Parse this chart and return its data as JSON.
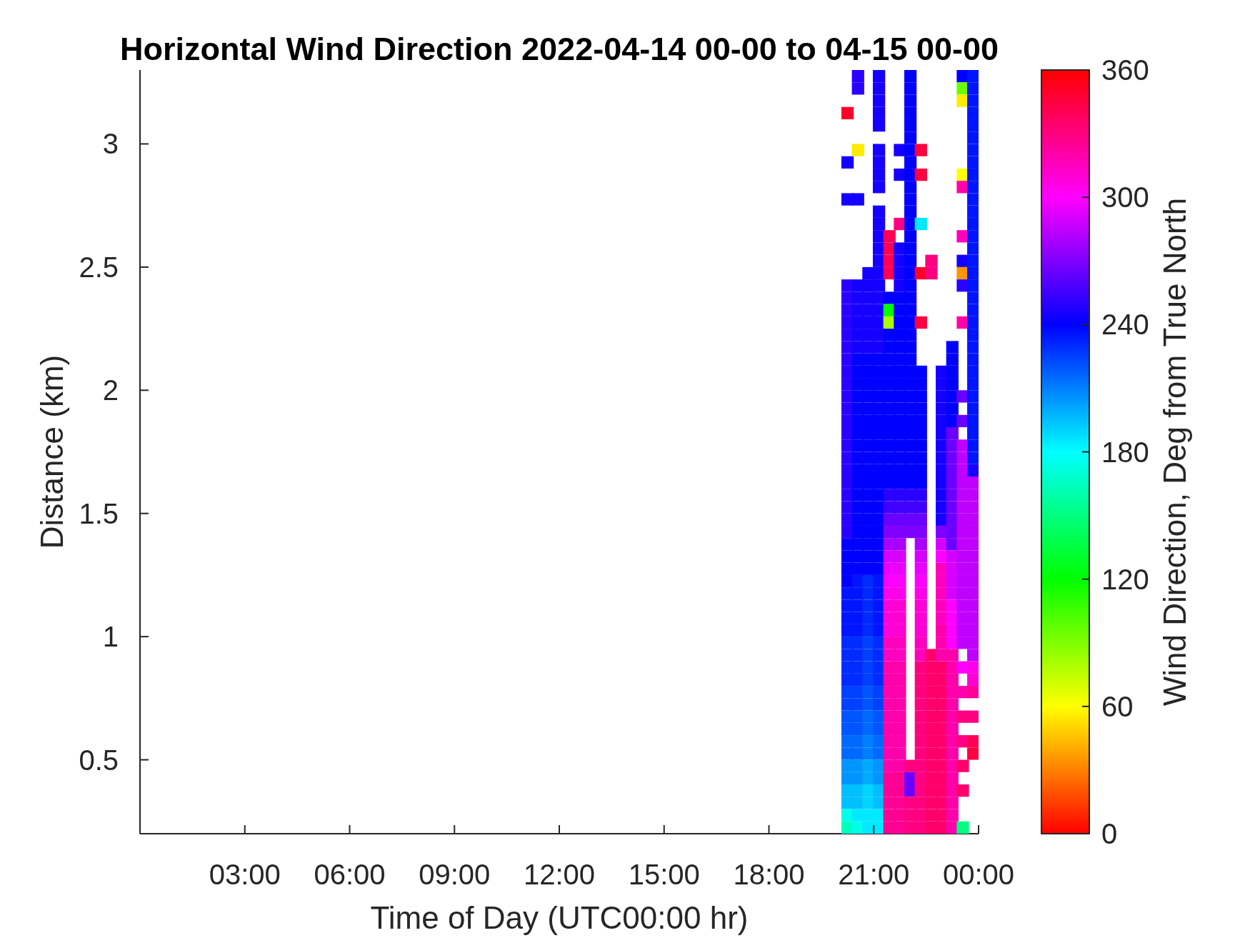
{
  "chart_data": {
    "type": "scatter",
    "title": "Horizontal Wind Direction 2022-04-14 00-00 to 04-15 00-00",
    "xlabel": "Time of Day (UTC00:00 hr)",
    "ylabel": "Distance (km)",
    "clabel": "Wind Direction, Deg from True North",
    "marker": "square",
    "xlim": [
      0,
      24
    ],
    "xticks": [
      {
        "value": 3,
        "label": "03:00"
      },
      {
        "value": 6,
        "label": "06:00"
      },
      {
        "value": 9,
        "label": "09:00"
      },
      {
        "value": 12,
        "label": "12:00"
      },
      {
        "value": 15,
        "label": "15:00"
      },
      {
        "value": 18,
        "label": "18:00"
      },
      {
        "value": 21,
        "label": "21:00"
      },
      {
        "value": 24,
        "label": "00:00"
      }
    ],
    "ylim": [
      0.2,
      3.3
    ],
    "yticks": [
      0.5,
      1,
      1.5,
      2,
      2.5,
      3
    ],
    "clim": [
      0,
      360
    ],
    "cticks": [
      0,
      60,
      120,
      180,
      240,
      300,
      360
    ],
    "x": [
      20.25,
      20.25,
      20.25,
      20.25,
      20.25,
      20.25,
      20.25,
      20.25,
      20.25,
      20.25,
      20.25,
      20.25,
      20.25,
      20.25,
      20.25,
      20.25,
      20.25,
      20.25,
      20.25,
      20.25,
      20.25,
      20.25,
      20.25,
      20.25,
      20.25,
      20.25,
      20.25,
      20.25,
      20.25,
      20.25,
      20.25,
      20.25,
      20.25,
      20.25,
      20.25,
      20.25,
      20.25,
      20.25,
      20.25,
      20.25,
      20.25,
      20.25,
      20.25,
      20.25,
      20.25,
      20.25,
      20.25,
      20.25,
      20.55,
      20.55,
      20.55,
      20.55,
      20.55,
      20.55,
      20.55,
      20.55,
      20.55,
      20.55,
      20.55,
      20.55,
      20.55,
      20.55,
      20.55,
      20.55,
      20.55,
      20.55,
      20.55,
      20.55,
      20.55,
      20.55,
      20.55,
      20.55,
      20.55,
      20.55,
      20.55,
      20.55,
      20.55,
      20.55,
      20.55,
      20.55,
      20.55,
      20.55,
      20.55,
      20.55,
      20.55,
      20.55,
      20.55,
      20.55,
      20.55,
      20.55,
      20.55,
      20.55,
      20.55,
      20.55,
      20.55,
      20.55,
      20.55,
      20.85,
      20.85,
      20.85,
      20.85,
      20.85,
      20.85,
      20.85,
      20.85,
      20.85,
      20.85,
      20.85,
      20.85,
      20.85,
      20.85,
      20.85,
      20.85,
      20.85,
      20.85,
      20.85,
      20.85,
      20.85,
      20.85,
      20.85,
      20.85,
      20.85,
      20.85,
      20.85,
      20.85,
      20.85,
      20.85,
      20.85,
      20.85,
      20.85,
      20.85,
      20.85,
      20.85,
      20.85,
      20.85,
      20.85,
      20.85,
      20.85,
      20.85,
      20.85,
      20.85,
      20.85,
      20.85,
      21.15,
      21.15,
      21.15,
      21.15,
      21.15,
      21.15,
      21.15,
      21.15,
      21.15,
      21.15,
      21.15,
      21.15,
      21.15,
      21.15,
      21.15,
      21.15,
      21.15,
      21.15,
      21.15,
      21.15,
      21.15,
      21.15,
      21.15,
      21.15,
      21.15,
      21.15,
      21.15,
      21.15,
      21.15,
      21.15,
      21.15,
      21.15,
      21.15,
      21.15,
      21.15,
      21.15,
      21.15,
      21.15,
      21.15,
      21.15,
      21.15,
      21.15,
      21.15,
      21.15,
      21.15,
      21.15,
      21.15,
      21.15,
      21.15,
      21.15,
      21.15,
      21.15,
      21.15,
      21.15,
      21.15,
      21.15,
      21.15,
      21.15,
      21.15,
      21.15,
      21.45,
      21.45,
      21.45,
      21.45,
      21.45,
      21.45,
      21.45,
      21.45,
      21.45,
      21.45,
      21.45,
      21.45,
      21.45,
      21.45,
      21.45,
      21.45,
      21.45,
      21.45,
      21.45,
      21.45,
      21.45,
      21.45,
      21.45,
      21.45,
      21.45,
      21.45,
      21.45,
      21.45,
      21.45,
      21.45,
      21.45,
      21.45,
      21.45,
      21.45,
      21.45,
      21.45,
      21.45,
      21.45,
      21.45,
      21.45,
      21.45,
      21.45,
      21.45,
      21.45,
      21.45,
      21.45,
      21.45,
      21.45,
      21.75,
      21.75,
      21.75,
      21.75,
      21.75,
      21.75,
      21.75,
      21.75,
      21.75,
      21.75,
      21.75,
      21.75,
      21.75,
      21.75,
      21.75,
      21.75,
      21.75,
      21.75,
      21.75,
      21.75,
      21.75,
      21.75,
      21.75,
      21.75,
      21.75,
      21.75,
      21.75,
      21.75,
      21.75,
      21.75,
      21.75,
      21.75,
      21.75,
      21.75,
      21.75,
      21.75,
      21.75,
      21.75,
      21.75,
      21.75,
      21.75,
      21.75,
      21.75,
      21.75,
      21.75,
      21.75,
      21.75,
      21.75,
      21.75,
      21.75,
      21.75,
      22.05,
      22.05,
      22.05,
      22.05,
      22.05,
      22.05,
      22.05,
      22.05,
      22.05,
      22.05,
      22.05,
      22.05,
      22.05,
      22.05,
      22.05,
      22.05,
      22.05,
      22.05,
      22.05,
      22.05,
      22.05,
      22.05,
      22.05,
      22.05,
      22.05,
      22.05,
      22.05,
      22.05,
      22.05,
      22.05,
      22.05,
      22.05,
      22.05,
      22.05,
      22.05,
      22.05,
      22.05,
      22.05,
      22.05,
      22.05,
      22.05,
      22.05,
      22.05,
      22.05,
      22.35,
      22.35,
      22.35,
      22.35,
      22.35,
      22.35,
      22.35,
      22.35,
      22.35,
      22.35,
      22.35,
      22.35,
      22.35,
      22.35,
      22.35,
      22.35,
      22.35,
      22.35,
      22.35,
      22.35,
      22.35,
      22.35,
      22.35,
      22.35,
      22.35,
      22.35,
      22.35,
      22.35,
      22.35,
      22.35,
      22.35,
      22.35,
      22.35,
      22.35,
      22.35,
      22.35,
      22.35,
      22.35,
      22.35,
      22.35,
      22.35,
      22.35,
      22.35,
      22.65,
      22.65,
      22.65,
      22.65,
      22.65,
      22.65,
      22.65,
      22.65,
      22.65,
      22.65,
      22.65,
      22.65,
      22.65,
      22.65,
      22.65,
      22.65,
      22.65,
      22.95,
      22.95,
      22.95,
      22.95,
      22.95,
      22.95,
      22.95,
      22.95,
      22.95,
      22.95,
      22.95,
      22.95,
      22.95,
      22.95,
      22.95,
      22.95,
      22.95,
      22.95,
      22.95,
      22.95,
      22.95,
      22.95,
      22.95,
      22.95,
      22.95,
      22.95,
      22.95,
      22.95,
      22.95,
      22.95,
      22.95,
      22.95,
      22.95,
      22.95,
      22.95,
      22.95,
      22.95,
      22.95,
      23.25,
      23.25,
      23.25,
      23.25,
      23.25,
      23.25,
      23.25,
      23.25,
      23.25,
      23.25,
      23.25,
      23.25,
      23.25,
      23.25,
      23.25,
      23.25,
      23.25,
      23.25,
      23.25,
      23.25,
      23.25,
      23.25,
      23.25,
      23.25,
      23.25,
      23.25,
      23.25,
      23.25,
      23.25,
      23.25,
      23.25,
      23.25,
      23.25,
      23.25,
      23.25,
      23.25,
      23.25,
      23.25,
      23.25,
      23.25,
      23.55,
      23.55,
      23.55,
      23.55,
      23.55,
      23.55,
      23.55,
      23.55,
      23.55,
      23.55,
      23.55,
      23.55,
      23.55,
      23.55,
      23.55,
      23.55,
      23.55,
      23.55,
      23.55,
      23.55,
      23.55,
      23.55,
      23.55,
      23.55,
      23.55,
      23.55,
      23.55,
      23.55,
      23.55,
      23.55,
      23.55,
      23.55,
      23.55,
      23.55,
      23.55,
      23.55,
      23.85,
      23.85,
      23.85,
      23.85,
      23.85,
      23.85,
      23.85,
      23.85,
      23.85,
      23.85,
      23.85,
      23.85,
      23.85,
      23.85,
      23.85,
      23.85,
      23.85,
      23.85,
      23.85,
      23.85,
      23.85,
      23.85,
      23.85,
      23.85,
      23.85,
      23.85,
      23.85,
      23.85,
      23.85,
      23.85,
      23.85,
      23.85,
      23.85,
      23.85,
      23.85,
      23.85,
      23.85,
      23.85,
      23.85,
      23.85,
      23.85,
      23.85,
      23.85,
      23.85,
      23.85,
      23.85,
      23.85,
      23.85,
      23.85,
      23.85,
      23.85,
      23.85,
      23.85,
      23.85
    ],
    "values": [
      3.125,
      2.925,
      2.775,
      2.425,
      2.375,
      2.325,
      2.275,
      2.225,
      2.175,
      2.125,
      2.075,
      2.025,
      1.975,
      1.925,
      1.875,
      1.825,
      1.775,
      1.725,
      1.675,
      1.625,
      1.575,
      1.525,
      1.475,
      1.425,
      1.375,
      1.325,
      1.275,
      1.225,
      1.175,
      1.125,
      1.075,
      1.025,
      0.975,
      0.925,
      0.875,
      0.825,
      0.775,
      0.725,
      0.675,
      0.625,
      0.575,
      0.525,
      0.475,
      0.425,
      0.375,
      0.325,
      0.275,
      0.225,
      3.275,
      3.225,
      2.975,
      2.775,
      2.425,
      2.375,
      2.325,
      2.275,
      2.225,
      2.175,
      2.125,
      2.075,
      2.025,
      1.975,
      1.925,
      1.875,
      1.825,
      1.775,
      1.725,
      1.675,
      1.625,
      1.575,
      1.525,
      1.475,
      1.425,
      1.375,
      1.325,
      1.275,
      1.225,
      1.175,
      1.125,
      1.075,
      1.025,
      0.975,
      0.925,
      0.875,
      0.825,
      0.775,
      0.725,
      0.675,
      0.625,
      0.575,
      0.525,
      0.475,
      0.425,
      0.375,
      0.325,
      0.275,
      0.225,
      2.475,
      2.425,
      2.375,
      2.325,
      2.275,
      2.225,
      2.175,
      2.125,
      2.075,
      2.025,
      1.975,
      1.925,
      1.875,
      1.825,
      1.775,
      1.725,
      1.675,
      1.625,
      1.575,
      1.525,
      1.475,
      1.425,
      1.375,
      1.325,
      1.275,
      1.225,
      1.175,
      1.125,
      1.075,
      1.025,
      0.975,
      0.925,
      0.875,
      0.825,
      0.775,
      0.725,
      0.675,
      0.625,
      0.575,
      0.525,
      0.475,
      0.425,
      0.375,
      0.325,
      0.275,
      0.225,
      3.275,
      3.225,
      3.175,
      3.125,
      3.075,
      2.975,
      2.925,
      2.875,
      2.825,
      2.725,
      2.675,
      2.625,
      2.575,
      2.525,
      2.475,
      2.425,
      2.375,
      2.325,
      2.275,
      2.225,
      2.175,
      2.125,
      2.075,
      2.025,
      1.975,
      1.925,
      1.875,
      1.825,
      1.775,
      1.725,
      1.675,
      1.625,
      1.575,
      1.525,
      1.475,
      1.425,
      1.375,
      1.325,
      1.275,
      1.225,
      1.175,
      1.125,
      1.075,
      1.025,
      0.975,
      0.925,
      0.875,
      0.825,
      0.775,
      0.725,
      0.675,
      0.625,
      0.575,
      0.525,
      0.475,
      0.425,
      0.375,
      0.325,
      0.275,
      0.225,
      2.625,
      2.575,
      2.525,
      2.475,
      2.375,
      2.325,
      2.275,
      2.225,
      2.175,
      2.125,
      2.075,
      2.025,
      1.975,
      1.925,
      1.875,
      1.825,
      1.775,
      1.725,
      1.675,
      1.625,
      1.575,
      1.525,
      1.475,
      1.425,
      1.375,
      1.325,
      1.275,
      1.225,
      1.175,
      1.125,
      1.075,
      1.025,
      0.975,
      0.925,
      0.875,
      0.825,
      0.775,
      0.725,
      0.675,
      0.625,
      0.575,
      0.525,
      0.475,
      0.425,
      0.375,
      0.325,
      0.275,
      0.225,
      2.975,
      2.875,
      2.675,
      2.575,
      2.525,
      2.475,
      2.425,
      2.375,
      2.325,
      2.275,
      2.225,
      2.175,
      2.125,
      2.075,
      2.025,
      1.975,
      1.925,
      1.875,
      1.825,
      1.775,
      1.725,
      1.675,
      1.625,
      1.575,
      1.525,
      1.475,
      1.425,
      1.375,
      1.325,
      1.275,
      1.225,
      1.175,
      1.125,
      1.075,
      1.025,
      0.975,
      0.925,
      0.875,
      0.825,
      0.775,
      0.725,
      0.675,
      0.625,
      0.575,
      0.525,
      0.475,
      0.425,
      0.375,
      0.325,
      0.275,
      0.225,
      3.275,
      3.225,
      3.175,
      3.125,
      3.075,
      3.025,
      2.975,
      2.925,
      2.875,
      2.825,
      2.775,
      2.725,
      2.675,
      2.625,
      2.575,
      2.525,
      2.475,
      2.425,
      2.375,
      2.325,
      2.275,
      2.225,
      2.175,
      2.125,
      2.075,
      2.025,
      1.975,
      1.925,
      1.875,
      1.825,
      1.775,
      1.725,
      1.675,
      1.625,
      1.575,
      1.525,
      1.475,
      1.425,
      0.475,
      0.425,
      0.375,
      0.325,
      0.275,
      0.225,
      2.975,
      2.875,
      2.675,
      2.475,
      2.275,
      2.075,
      2.025,
      1.975,
      1.925,
      1.875,
      1.825,
      1.775,
      1.725,
      1.675,
      1.625,
      1.575,
      1.525,
      1.475,
      1.425,
      1.375,
      1.325,
      1.275,
      1.225,
      1.175,
      1.125,
      1.075,
      1.025,
      0.975,
      0.925,
      0.875,
      0.825,
      0.775,
      0.725,
      0.675,
      0.625,
      0.575,
      0.525,
      0.475,
      0.425,
      0.375,
      0.325,
      0.275,
      0.225,
      2.525,
      2.475,
      0.925,
      0.875,
      0.825,
      0.775,
      0.725,
      0.675,
      0.625,
      0.575,
      0.525,
      0.475,
      0.425,
      0.375,
      0.325,
      0.275,
      0.225,
      2.075,
      2.025,
      1.975,
      1.925,
      1.875,
      1.825,
      1.775,
      1.725,
      1.675,
      1.625,
      1.575,
      1.525,
      1.475,
      1.425,
      1.375,
      1.325,
      1.275,
      1.225,
      1.175,
      1.125,
      1.075,
      1.025,
      0.975,
      0.925,
      0.875,
      0.825,
      0.775,
      0.725,
      0.675,
      0.625,
      0.575,
      0.525,
      0.475,
      0.425,
      0.375,
      0.325,
      0.275,
      0.225,
      2.175,
      2.125,
      2.075,
      2.025,
      1.975,
      1.925,
      1.875,
      1.825,
      1.775,
      1.725,
      1.675,
      1.625,
      1.575,
      1.525,
      1.475,
      1.425,
      1.375,
      1.325,
      1.275,
      1.225,
      1.175,
      1.125,
      1.075,
      1.025,
      0.975,
      0.925,
      0.875,
      0.825,
      0.775,
      0.725,
      0.675,
      0.625,
      0.575,
      0.525,
      0.475,
      0.425,
      0.375,
      0.325,
      0.275,
      0.225,
      3.275,
      3.225,
      3.175,
      2.875,
      2.825,
      2.625,
      2.525,
      2.475,
      2.425,
      2.275,
      1.975,
      1.875,
      1.775,
      1.725,
      1.675,
      1.625,
      1.575,
      1.525,
      1.475,
      1.425,
      1.375,
      1.325,
      1.275,
      1.225,
      1.175,
      1.125,
      1.075,
      1.025,
      0.975,
      0.875,
      0.775,
      0.675,
      0.575,
      0.475,
      0.375,
      0.225,
      3.275,
      3.225,
      3.175,
      3.125,
      3.075,
      3.025,
      2.975,
      2.925,
      2.875,
      2.825,
      2.775,
      2.725,
      2.675,
      2.625,
      2.575,
      2.525,
      2.475,
      2.425,
      2.375,
      2.325,
      2.275,
      2.225,
      2.175,
      2.125,
      2.075,
      2.025,
      1.975,
      1.925,
      1.875,
      1.825,
      1.775,
      1.725,
      1.675,
      1.625,
      1.575,
      1.525,
      1.475,
      1.425,
      1.375,
      1.325,
      1.275,
      1.225,
      1.175,
      1.125,
      1.075,
      1.025,
      0.975,
      0.925,
      0.875,
      0.825,
      0.775,
      0.675,
      0.575,
      0.525
    ],
    "cvalues": [
      350,
      245,
      245,
      250,
      250,
      250,
      250,
      250,
      250,
      250,
      250,
      250,
      250,
      250,
      250,
      250,
      250,
      250,
      250,
      250,
      250,
      250,
      250,
      250,
      240,
      240,
      240,
      240,
      235,
      235,
      235,
      235,
      230,
      230,
      230,
      230,
      225,
      225,
      220,
      220,
      215,
      215,
      205,
      205,
      195,
      195,
      175,
      165,
      250,
      250,
      55,
      245,
      245,
      245,
      245,
      245,
      245,
      245,
      240,
      240,
      240,
      240,
      240,
      240,
      240,
      240,
      240,
      240,
      240,
      240,
      240,
      240,
      240,
      240,
      240,
      240,
      235,
      235,
      235,
      235,
      235,
      230,
      230,
      230,
      230,
      225,
      225,
      220,
      220,
      215,
      215,
      205,
      205,
      195,
      195,
      185,
      175,
      245,
      245,
      245,
      245,
      245,
      245,
      245,
      240,
      240,
      240,
      240,
      240,
      240,
      240,
      240,
      240,
      240,
      240,
      240,
      240,
      240,
      240,
      240,
      240,
      240,
      230,
      230,
      230,
      230,
      230,
      225,
      225,
      225,
      225,
      220,
      220,
      215,
      215,
      210,
      210,
      200,
      200,
      190,
      190,
      185,
      185,
      245,
      245,
      245,
      245,
      245,
      245,
      245,
      245,
      245,
      245,
      245,
      245,
      245,
      245,
      245,
      245,
      245,
      245,
      245,
      245,
      245,
      240,
      240,
      240,
      240,
      240,
      240,
      240,
      240,
      240,
      240,
      240,
      240,
      240,
      240,
      240,
      240,
      240,
      240,
      235,
      235,
      235,
      235,
      235,
      230,
      230,
      230,
      230,
      225,
      225,
      220,
      220,
      215,
      215,
      205,
      205,
      195,
      195,
      185,
      185,
      340,
      340,
      340,
      340,
      240,
      120,
      80,
      240,
      240,
      240,
      240,
      240,
      240,
      240,
      240,
      240,
      240,
      240,
      240,
      240,
      250,
      255,
      265,
      270,
      280,
      290,
      295,
      300,
      305,
      310,
      310,
      310,
      315,
      315,
      320,
      320,
      320,
      320,
      320,
      320,
      320,
      320,
      320,
      325,
      325,
      325,
      325,
      325,
      245,
      245,
      330,
      245,
      245,
      245,
      245,
      240,
      240,
      240,
      240,
      240,
      240,
      240,
      240,
      240,
      240,
      240,
      240,
      240,
      240,
      240,
      240,
      250,
      255,
      265,
      270,
      280,
      290,
      295,
      300,
      305,
      310,
      310,
      310,
      315,
      315,
      320,
      320,
      320,
      320,
      320,
      320,
      320,
      320,
      320,
      325,
      325,
      325,
      325,
      325,
      240,
      240,
      240,
      240,
      240,
      240,
      240,
      240,
      240,
      240,
      240,
      240,
      240,
      240,
      240,
      240,
      240,
      240,
      240,
      240,
      240,
      240,
      240,
      240,
      240,
      240,
      240,
      240,
      240,
      240,
      240,
      240,
      240,
      240,
      250,
      255,
      265,
      270,
      330,
      265,
      265,
      330,
      330,
      330,
      345,
      345,
      185,
      350,
      345,
      240,
      240,
      240,
      240,
      240,
      240,
      240,
      240,
      240,
      240,
      250,
      255,
      265,
      270,
      280,
      290,
      295,
      300,
      305,
      310,
      310,
      310,
      315,
      315,
      330,
      330,
      330,
      330,
      330,
      330,
      330,
      330,
      330,
      330,
      330,
      330,
      330,
      330,
      330,
      330,
      335,
      335,
      335,
      335,
      335,
      335,
      335,
      335,
      335,
      335,
      335,
      335,
      335,
      335,
      335,
      245,
      245,
      245,
      245,
      245,
      245,
      245,
      245,
      245,
      245,
      245,
      245,
      245,
      270,
      290,
      300,
      315,
      315,
      315,
      315,
      315,
      320,
      320,
      320,
      335,
      335,
      335,
      335,
      335,
      335,
      335,
      335,
      335,
      335,
      335,
      335,
      335,
      335,
      240,
      240,
      240,
      240,
      240,
      240,
      240,
      265,
      265,
      265,
      265,
      265,
      265,
      265,
      265,
      265,
      265,
      290,
      290,
      290,
      290,
      300,
      300,
      300,
      300,
      320,
      320,
      320,
      320,
      320,
      320,
      320,
      320,
      320,
      320,
      320,
      320,
      320,
      320,
      320,
      240,
      95,
      55,
      60,
      320,
      315,
      245,
      35,
      250,
      320,
      265,
      265,
      285,
      285,
      285,
      285,
      285,
      285,
      285,
      285,
      285,
      285,
      285,
      285,
      285,
      285,
      285,
      285,
      285,
      300,
      320,
      330,
      330,
      335,
      335,
      150,
      235,
      235,
      235,
      235,
      235,
      235,
      235,
      235,
      235,
      235,
      235,
      235,
      235,
      235,
      235,
      235,
      235,
      235,
      235,
      235,
      235,
      235,
      235,
      235,
      235,
      235,
      235,
      235,
      235,
      235,
      235,
      235,
      245,
      285,
      285,
      285,
      285,
      285,
      285,
      285,
      285,
      285,
      285,
      285,
      285,
      285,
      285,
      285,
      305,
      310,
      325,
      330,
      340,
      345
    ]
  }
}
